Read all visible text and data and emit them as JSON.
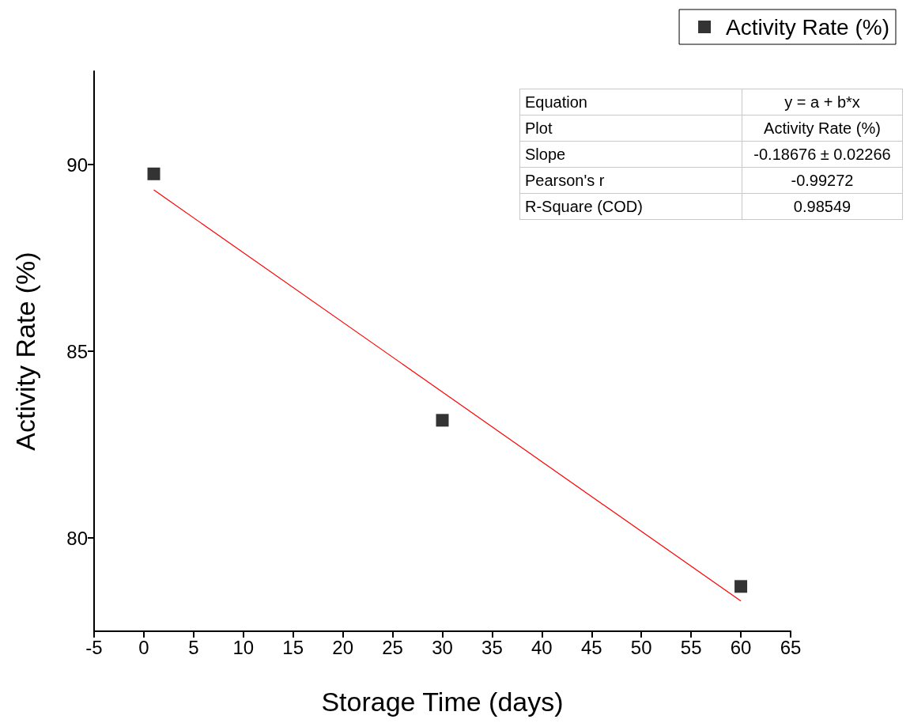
{
  "chart_data": {
    "type": "scatter",
    "xlabel": "Storage Time (days)",
    "ylabel": "Activity Rate (%)",
    "xlim": [
      -5,
      65
    ],
    "xticks": [
      -5,
      0,
      5,
      10,
      15,
      20,
      25,
      30,
      35,
      40,
      45,
      50,
      55,
      60,
      65
    ],
    "ylim": [
      77.5,
      92.5
    ],
    "yticks": [
      80,
      85,
      90
    ],
    "series": [
      {
        "name": "Activity Rate (%)",
        "type": "scatter",
        "color": "#000000",
        "marker": "square",
        "x": [
          1,
          30,
          60
        ],
        "values": [
          89.75,
          83.15,
          78.7
        ]
      },
      {
        "type": "line",
        "color": "#ff0000",
        "marker": "none",
        "line_style": "solid",
        "x": [
          1,
          60
        ],
        "values": [
          89.32,
          78.31
        ]
      }
    ],
    "legend": "top right",
    "grid": false,
    "annotations": [
      "Equation",
      "y = a + b*x",
      "Plot",
      "Activity Rate (%)",
      "Slope",
      "-0.18676 ± 0.02266",
      "Pearson's r",
      "-0.99272",
      "R-Square (COD)",
      "0.98549"
    ]
  }
}
